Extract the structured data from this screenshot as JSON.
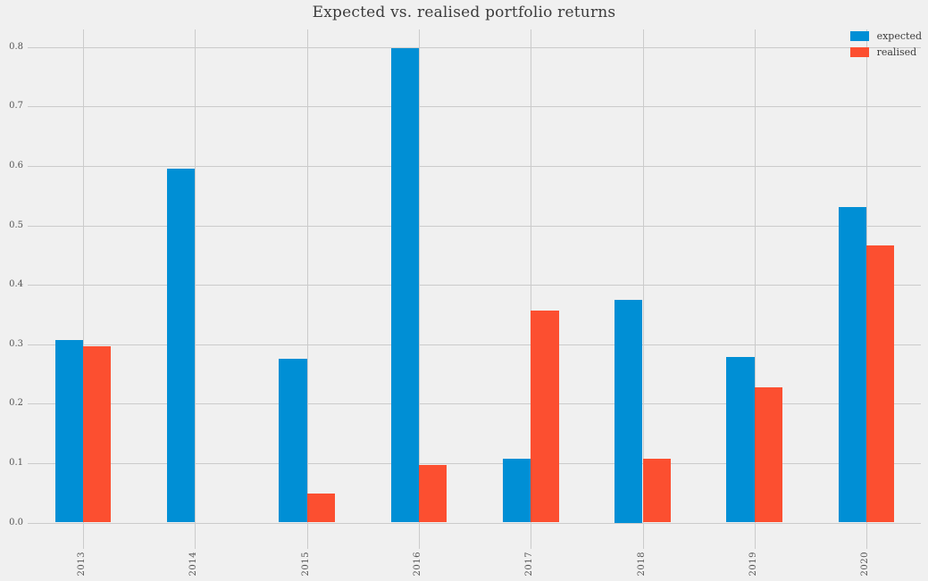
{
  "title": "Expected vs. realised portfolio returns",
  "colors": {
    "background": "#f0f0f0",
    "gridline": "#cbcbcb",
    "title_text": "#3c3c3c",
    "tick_text": "#555555",
    "expected": "#008fd5",
    "realised": "#fc4f30"
  },
  "legend": {
    "position": "upper right",
    "items": [
      {
        "label": "expected",
        "color": "#008fd5"
      },
      {
        "label": "realised",
        "color": "#fc4f30"
      }
    ]
  },
  "chart_data": {
    "type": "bar",
    "title": "Expected vs. realised portfolio returns",
    "xlabel": "",
    "ylabel": "",
    "categories": [
      "2013",
      "2014",
      "2015",
      "2016",
      "2017",
      "2018",
      "2019",
      "2020"
    ],
    "series": [
      {
        "name": "expected",
        "color": "#008fd5",
        "values": [
          0.307,
          0.595,
          0.276,
          0.798,
          0.107,
          0.375,
          0.279,
          0.531
        ]
      },
      {
        "name": "realised",
        "color": "#fc4f30",
        "values": [
          0.296,
          0.0,
          0.049,
          0.097,
          0.357,
          0.107,
          0.227,
          0.466
        ]
      }
    ],
    "ylim": [
      0.0,
      0.84
    ],
    "yticks": [
      "0.0",
      "0.1",
      "0.2",
      "0.3",
      "0.4",
      "0.5",
      "0.6",
      "0.7",
      "0.8"
    ],
    "grid": true,
    "xtick_rotation": 90,
    "legend_position": "upper right"
  }
}
